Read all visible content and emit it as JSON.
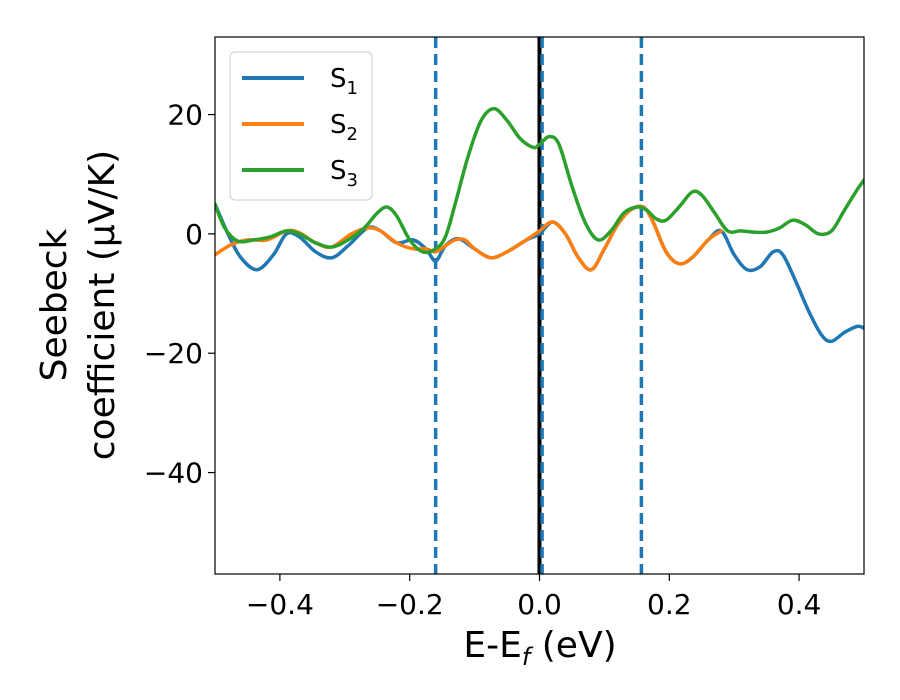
{
  "chart_data": {
    "type": "line",
    "title": "",
    "xlabel": "E-E",
    "xlabel_sub": "f",
    "xlabel_unit": " (eV)",
    "ylabel_line1": "Seebeck",
    "ylabel_line2": "coefficient  (μV/K)",
    "xlim": [
      -0.5,
      0.5
    ],
    "ylim": [
      -57,
      33
    ],
    "xticks": [
      -0.4,
      -0.2,
      0.0,
      0.2,
      0.4
    ],
    "xtick_labels": [
      "−0.4",
      "−0.2",
      "0.0",
      "0.2",
      "0.4"
    ],
    "yticks": [
      -40,
      -20,
      0,
      20
    ],
    "ytick_labels": [
      "−40",
      "−20",
      "0",
      "20"
    ],
    "grid": false,
    "legend_position": "top-left",
    "vlines": [
      {
        "x": -0.16,
        "style": "dashed",
        "color": "#1f77b4"
      },
      {
        "x": 0.0,
        "style": "solid",
        "color": "#000000"
      },
      {
        "x": 0.004,
        "style": "dashed",
        "color": "#1f77b4"
      },
      {
        "x": 0.157,
        "style": "dashed",
        "color": "#1f77b4"
      }
    ],
    "series": [
      {
        "name": "S",
        "name_sub": "1",
        "color": "#1f77b4",
        "points": [
          [
            -0.5,
            5
          ],
          [
            -0.48,
            0
          ],
          [
            -0.46,
            -4
          ],
          [
            -0.435,
            -6
          ],
          [
            -0.41,
            -3.5
          ],
          [
            -0.39,
            0
          ],
          [
            -0.37,
            -0.5
          ],
          [
            -0.345,
            -3
          ],
          [
            -0.32,
            -4
          ],
          [
            -0.295,
            -2
          ],
          [
            -0.265,
            1
          ],
          [
            -0.245,
            0.5
          ],
          [
            -0.22,
            -1.5
          ],
          [
            -0.195,
            -1
          ],
          [
            -0.175,
            -2.5
          ],
          [
            -0.16,
            -4.5
          ],
          [
            -0.145,
            -2
          ],
          [
            -0.125,
            -0.8
          ],
          [
            -0.1,
            -2.5
          ],
          [
            -0.075,
            -4
          ],
          [
            -0.05,
            -3
          ],
          [
            -0.02,
            -1
          ],
          [
            0.0,
            0
          ],
          [
            0.02,
            2
          ],
          [
            0.04,
            0
          ],
          [
            0.06,
            -4
          ],
          [
            0.08,
            -6
          ],
          [
            0.1,
            -2.5
          ],
          [
            0.12,
            1.5
          ],
          [
            0.14,
            4
          ],
          [
            0.16,
            4.5
          ],
          [
            0.175,
            2
          ],
          [
            0.195,
            -3
          ],
          [
            0.215,
            -5
          ],
          [
            0.235,
            -4
          ],
          [
            0.26,
            -1
          ],
          [
            0.28,
            0.5
          ],
          [
            0.3,
            -3.5
          ],
          [
            0.32,
            -6
          ],
          [
            0.34,
            -5.5
          ],
          [
            0.36,
            -3
          ],
          [
            0.375,
            -3.5
          ],
          [
            0.395,
            -8
          ],
          [
            0.415,
            -13
          ],
          [
            0.435,
            -17
          ],
          [
            0.45,
            -18
          ],
          [
            0.47,
            -16.5
          ],
          [
            0.49,
            -15.5
          ],
          [
            0.5,
            -15.8
          ]
        ]
      },
      {
        "name": "S",
        "name_sub": "2",
        "color": "#ff7f0e",
        "points": [
          [
            -0.5,
            -3.5
          ],
          [
            -0.475,
            -1.8
          ],
          [
            -0.45,
            -1
          ],
          [
            -0.42,
            -1
          ],
          [
            -0.39,
            0.5
          ],
          [
            -0.37,
            0.2
          ],
          [
            -0.345,
            -1.5
          ],
          [
            -0.32,
            -2.2
          ],
          [
            -0.29,
            0
          ],
          [
            -0.265,
            1
          ],
          [
            -0.245,
            0.5
          ],
          [
            -0.22,
            -1.5
          ],
          [
            -0.195,
            -2.5
          ],
          [
            -0.175,
            -2.5
          ],
          [
            -0.16,
            -3
          ],
          [
            -0.145,
            -2
          ],
          [
            -0.13,
            -1
          ],
          [
            -0.115,
            -1
          ],
          [
            -0.1,
            -2.5
          ],
          [
            -0.075,
            -4
          ],
          [
            -0.05,
            -3
          ],
          [
            -0.02,
            -1
          ],
          [
            0.0,
            0.5
          ],
          [
            0.02,
            2
          ],
          [
            0.04,
            0
          ],
          [
            0.06,
            -4
          ],
          [
            0.08,
            -6
          ],
          [
            0.1,
            -2.5
          ],
          [
            0.12,
            1.5
          ],
          [
            0.14,
            4
          ],
          [
            0.16,
            4.5
          ],
          [
            0.175,
            2
          ],
          [
            0.195,
            -3
          ],
          [
            0.215,
            -5
          ],
          [
            0.235,
            -4
          ],
          [
            0.26,
            -1
          ],
          [
            0.28,
            0.5
          ]
        ]
      },
      {
        "name": "S",
        "name_sub": "3",
        "color": "#2ca02c",
        "points": [
          [
            -0.5,
            5
          ],
          [
            -0.485,
            1
          ],
          [
            -0.465,
            -1.2
          ],
          [
            -0.44,
            -1
          ],
          [
            -0.415,
            -0.5
          ],
          [
            -0.39,
            0.5
          ],
          [
            -0.37,
            0
          ],
          [
            -0.345,
            -1.5
          ],
          [
            -0.32,
            -2.2
          ],
          [
            -0.295,
            -1
          ],
          [
            -0.27,
            1
          ],
          [
            -0.25,
            3.5
          ],
          [
            -0.235,
            4.5
          ],
          [
            -0.22,
            3
          ],
          [
            -0.2,
            -1
          ],
          [
            -0.18,
            -3
          ],
          [
            -0.16,
            -2.5
          ],
          [
            -0.145,
            -0.5
          ],
          [
            -0.13,
            5
          ],
          [
            -0.11,
            13
          ],
          [
            -0.09,
            19
          ],
          [
            -0.07,
            21
          ],
          [
            -0.05,
            19
          ],
          [
            -0.03,
            16
          ],
          [
            -0.01,
            14.5
          ],
          [
            0.0,
            15
          ],
          [
            0.015,
            16.3
          ],
          [
            0.03,
            15
          ],
          [
            0.05,
            8
          ],
          [
            0.07,
            2
          ],
          [
            0.09,
            -1
          ],
          [
            0.11,
            0.5
          ],
          [
            0.13,
            3.5
          ],
          [
            0.15,
            4.5
          ],
          [
            0.165,
            4
          ],
          [
            0.18,
            2.5
          ],
          [
            0.195,
            2.3
          ],
          [
            0.215,
            4.5
          ],
          [
            0.235,
            7
          ],
          [
            0.25,
            6.5
          ],
          [
            0.27,
            3.5
          ],
          [
            0.29,
            0.5
          ],
          [
            0.31,
            0.5
          ],
          [
            0.33,
            0.3
          ],
          [
            0.35,
            0.3
          ],
          [
            0.37,
            1
          ],
          [
            0.39,
            2.3
          ],
          [
            0.41,
            1.5
          ],
          [
            0.43,
            0
          ],
          [
            0.45,
            0.5
          ],
          [
            0.47,
            4
          ],
          [
            0.49,
            7.5
          ],
          [
            0.5,
            9
          ]
        ]
      }
    ]
  }
}
